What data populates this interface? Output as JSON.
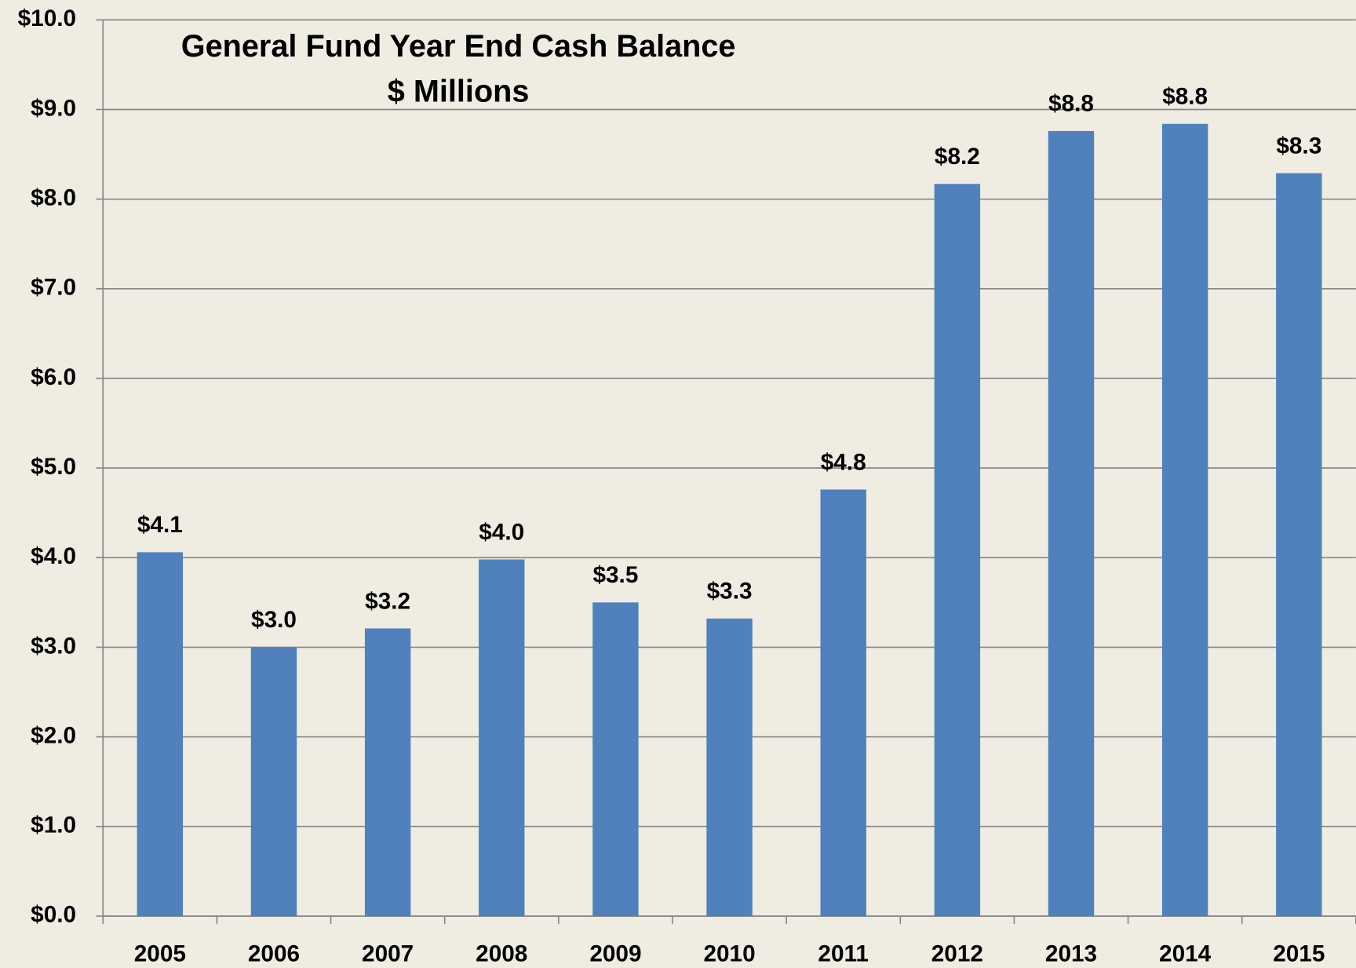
{
  "chart_data": {
    "type": "bar",
    "title": "General Fund Year End Cash Balance",
    "subtitle": "$ Millions",
    "categories": [
      "2005",
      "2006",
      "2007",
      "2008",
      "2009",
      "2010",
      "2011",
      "2012",
      "2013",
      "2014",
      "2015"
    ],
    "values": [
      4.06,
      3.0,
      3.21,
      3.98,
      3.5,
      3.32,
      4.76,
      8.17,
      8.76,
      8.84,
      8.29
    ],
    "value_labels": [
      "$4.1",
      "$3.0",
      "$3.2",
      "$4.0",
      "$3.5",
      "$3.3",
      "$4.8",
      "$8.2",
      "$8.8",
      "$8.8",
      "$8.3"
    ],
    "color": "#4f81bd",
    "ylim": [
      0,
      10
    ],
    "yticks": [
      {
        "value": 0,
        "label": "$0.0"
      },
      {
        "value": 1,
        "label": "$1.0"
      },
      {
        "value": 2,
        "label": "$2.0"
      },
      {
        "value": 3,
        "label": "$3.0"
      },
      {
        "value": 4,
        "label": "$4.0"
      },
      {
        "value": 5,
        "label": "$5.0"
      },
      {
        "value": 6,
        "label": "$6.0"
      },
      {
        "value": 7,
        "label": "$7.0"
      },
      {
        "value": 8,
        "label": "$8.0"
      },
      {
        "value": 9,
        "label": "$9.0"
      },
      {
        "value": 10,
        "label": "$10.0"
      }
    ],
    "grid": true
  }
}
